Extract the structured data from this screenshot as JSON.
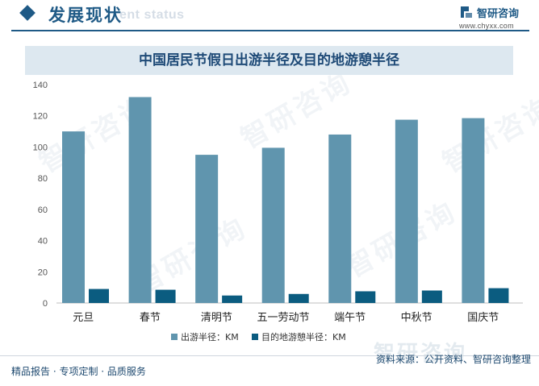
{
  "header": {
    "title": "发展现状",
    "subtitle_en": "ent status"
  },
  "brand": {
    "name": "智研咨询",
    "url": "www.chyxx.com"
  },
  "watermark": {
    "text": "智研咨询"
  },
  "chart_data": {
    "type": "bar",
    "title": "中国居民节假日出游半径及目的地游憩半径",
    "categories": [
      "元旦",
      "春节",
      "清明节",
      "五一劳动节",
      "端午节",
      "中秋节",
      "国庆节"
    ],
    "series": [
      {
        "name": "出游半径：KM",
        "color": "#6095ae",
        "values": [
          110,
          132,
          95,
          99.5,
          108,
          117.5,
          118.5
        ]
      },
      {
        "name": "目的地游憩半径：KM",
        "color": "#0b5c80",
        "values": [
          9,
          8.5,
          4.8,
          5.8,
          7.5,
          8,
          9.5
        ]
      }
    ],
    "ylim": [
      0,
      140
    ],
    "yticks": [
      0,
      20,
      40,
      60,
      80,
      100,
      120,
      140
    ],
    "grid": false,
    "legend_position": "bottom"
  },
  "footer": {
    "left_text": "精品报告 · 专项定制 · 品质服务",
    "source": "资料来源：公开资料、智研咨询整理"
  }
}
